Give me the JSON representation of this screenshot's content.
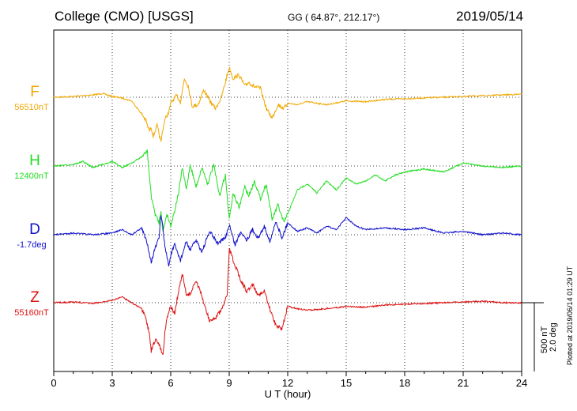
{
  "header": {
    "station": "College (CMO)  [USGS]",
    "coords": "GG ( 64.87°, 212.17°)",
    "date": "2019/05/14"
  },
  "plotted_note": "Plotted at 2019/06/14 01:29 UT",
  "scale": {
    "nt": "500 nT",
    "deg": "2.0 deg"
  },
  "colors": {
    "F": "#f0a800",
    "H": "#22dd22",
    "D": "#1010cc",
    "Z": "#dd1111"
  },
  "chart_data": {
    "type": "line",
    "xlabel": "U T (hour)",
    "xlim": [
      0,
      24
    ],
    "xticks": [
      "0",
      "3",
      "6",
      "9",
      "12",
      "15",
      "18",
      "21",
      "24"
    ],
    "grid": true,
    "series": [
      {
        "name": "F",
        "baseline": "56510nT",
        "x": [
          0,
          1,
          2,
          2.5,
          3,
          3.5,
          4,
          4.5,
          4.7,
          4.9,
          5.0,
          5.1,
          5.3,
          5.5,
          5.6,
          5.7,
          5.9,
          6.0,
          6.3,
          6.5,
          6.7,
          6.9,
          7.1,
          7.4,
          7.7,
          8.0,
          8.3,
          8.6,
          8.8,
          9.0,
          9.2,
          9.5,
          9.8,
          10.0,
          10.3,
          10.6,
          10.9,
          11.2,
          11.5,
          11.8,
          12.0,
          12.5,
          13,
          14,
          15,
          16,
          17,
          18,
          19,
          20,
          21,
          22,
          23,
          24
        ],
        "y": [
          0,
          10,
          30,
          50,
          10,
          -10,
          -50,
          -220,
          -300,
          -450,
          -400,
          -520,
          -380,
          -600,
          -420,
          -300,
          -200,
          -80,
          20,
          -60,
          250,
          150,
          -120,
          -100,
          100,
          -50,
          -150,
          0,
          200,
          400,
          250,
          300,
          150,
          200,
          140,
          120,
          -150,
          -280,
          -100,
          -150,
          -80,
          -100,
          -60,
          -100,
          -50,
          -60,
          -30,
          -20,
          -10,
          0,
          10,
          20,
          30,
          40
        ]
      },
      {
        "name": "H",
        "baseline": "12400nT",
        "x": [
          0,
          1,
          1.5,
          2,
          2.5,
          3,
          3.5,
          4,
          4.5,
          4.8,
          4.9,
          5.0,
          5.2,
          5.4,
          5.5,
          5.6,
          5.8,
          6.0,
          6.2,
          6.4,
          6.6,
          6.8,
          7.0,
          7.3,
          7.6,
          7.9,
          8.2,
          8.5,
          8.8,
          9.0,
          9.2,
          9.5,
          9.8,
          10.0,
          10.3,
          10.6,
          10.9,
          11.2,
          11.5,
          11.8,
          12.0,
          12.5,
          13,
          13.5,
          14,
          14.5,
          15,
          15.5,
          16,
          16.5,
          17,
          17.5,
          18,
          19,
          20,
          21,
          22,
          23,
          24
        ],
        "y": [
          0,
          50,
          150,
          -50,
          50,
          150,
          -50,
          100,
          300,
          500,
          -300,
          -1000,
          -1600,
          -1900,
          -1500,
          -2200,
          -1600,
          -2000,
          -1500,
          -900,
          -50,
          -800,
          50,
          -700,
          -50,
          -600,
          50,
          -1000,
          -300,
          -1800,
          -900,
          -1400,
          -700,
          -1000,
          -500,
          -1100,
          -600,
          -1800,
          -1300,
          -1900,
          -1600,
          -800,
          -600,
          -900,
          -500,
          -800,
          -400,
          -600,
          -500,
          -300,
          -500,
          -300,
          -200,
          -100,
          -200,
          100,
          0,
          -50,
          0
        ]
      },
      {
        "name": "D",
        "baseline": "-1.7deg",
        "x": [
          0,
          1,
          2,
          3,
          3.5,
          4,
          4.5,
          4.8,
          5.0,
          5.2,
          5.4,
          5.5,
          5.6,
          5.7,
          5.9,
          6.0,
          6.2,
          6.5,
          6.8,
          7.0,
          7.3,
          7.6,
          8.0,
          8.4,
          8.8,
          9.0,
          9.3,
          9.6,
          9.9,
          10.2,
          10.5,
          10.8,
          11.1,
          11.4,
          11.7,
          12.0,
          12.5,
          13,
          13.5,
          14,
          14.5,
          15,
          15.5,
          16,
          17,
          18,
          19,
          20,
          21,
          22,
          23,
          24
        ],
        "y": [
          0,
          0.1,
          0,
          0.1,
          0.3,
          0,
          0.4,
          -0.5,
          -1.6,
          -0.8,
          -0.2,
          1.2,
          0.4,
          -0.7,
          -1.8,
          -1.2,
          -0.6,
          -1.5,
          -0.4,
          -0.9,
          -0.3,
          -1.0,
          0.2,
          -0.5,
          -0.2,
          0.6,
          -0.6,
          0.2,
          -0.3,
          0.3,
          -0.2,
          0.5,
          -0.4,
          0.8,
          -0.2,
          0.7,
          0.2,
          0.4,
          0.1,
          0.5,
          0.3,
          1.0,
          0.5,
          0.3,
          0.4,
          0.3,
          0.4,
          0.1,
          0.2,
          0,
          0.1,
          0
        ]
      },
      {
        "name": "Z",
        "baseline": "55160nT",
        "x": [
          0,
          1,
          2,
          3,
          3.5,
          4,
          4.5,
          4.7,
          4.9,
          5.0,
          5.2,
          5.4,
          5.6,
          5.7,
          5.8,
          6.0,
          6.2,
          6.4,
          6.6,
          6.8,
          7.0,
          7.3,
          7.6,
          8.0,
          8.3,
          8.6,
          8.9,
          9.0,
          9.3,
          9.6,
          9.9,
          10.2,
          10.5,
          10.8,
          11.1,
          11.4,
          11.7,
          12.0,
          12.5,
          13,
          14,
          15,
          16,
          17,
          18,
          19,
          20,
          21,
          22,
          23,
          24
        ],
        "y": [
          0,
          10,
          -10,
          30,
          80,
          0,
          -80,
          -200,
          -400,
          -650,
          -500,
          -550,
          -700,
          -400,
          -200,
          -50,
          -150,
          150,
          380,
          100,
          120,
          300,
          80,
          -250,
          -200,
          -100,
          100,
          720,
          500,
          300,
          150,
          250,
          100,
          150,
          -100,
          -300,
          -350,
          -50,
          -80,
          -100,
          -80,
          -50,
          -60,
          -30,
          -20,
          -10,
          0,
          10,
          20,
          0,
          0
        ]
      }
    ]
  }
}
